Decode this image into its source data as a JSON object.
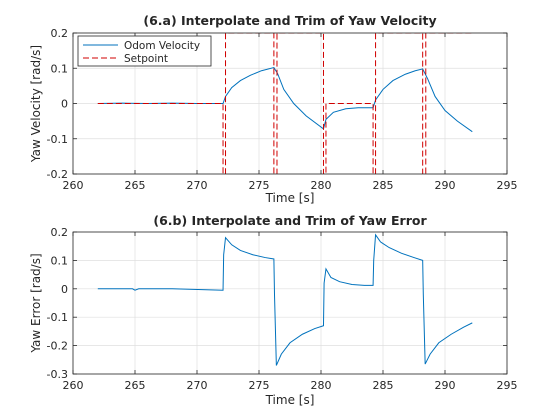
{
  "colors": {
    "odom": "#0072BD",
    "setpoint": "#D00000",
    "axis": "#262626",
    "grid": "#dfdfdf"
  },
  "chart_data": [
    {
      "type": "line",
      "title": "(6.a) Interpolate and Trim of Yaw Velocity",
      "xlabel": "Time [s]",
      "ylabel": "Yaw Velocity [rad/s]",
      "xlim": [
        260,
        295
      ],
      "ylim": [
        -0.2,
        0.2
      ],
      "xticks": [
        260,
        265,
        270,
        275,
        280,
        285,
        290,
        295
      ],
      "yticks": [
        -0.2,
        -0.1,
        0,
        0.1,
        0.2
      ],
      "xtick_labels": [
        "260",
        "265",
        "270",
        "275",
        "280",
        "285",
        "290",
        "295"
      ],
      "ytick_labels": [
        "-0.2",
        "-0.1",
        "0",
        "0.1",
        "0.2"
      ],
      "grid": true,
      "legend": {
        "placement": "top-left",
        "entries": [
          "Odom Velocity",
          "Setpoint"
        ]
      },
      "series": [
        {
          "name": "Odom Velocity",
          "style": "solid",
          "x": [
            262,
            264,
            266,
            268,
            270,
            272.1,
            272.3,
            272.8,
            273.5,
            274.3,
            275.2,
            276.2,
            276.5,
            277.0,
            277.8,
            278.8,
            280.2,
            280.4,
            281.0,
            282.0,
            283.0,
            284.2,
            284.4,
            285.0,
            285.8,
            286.8,
            287.6,
            288.2,
            288.6,
            289.2,
            290.0,
            291.0,
            292.2
          ],
          "y": [
            0,
            0.001,
            0,
            0.001,
            0,
            0,
            0.02,
            0.045,
            0.065,
            0.08,
            0.093,
            0.102,
            0.085,
            0.04,
            0.0,
            -0.035,
            -0.072,
            -0.045,
            -0.025,
            -0.015,
            -0.012,
            -0.012,
            0.01,
            0.04,
            0.065,
            0.083,
            0.093,
            0.098,
            0.07,
            0.02,
            -0.02,
            -0.05,
            -0.08
          ]
        },
        {
          "name": "Setpoint",
          "style": "dashed",
          "x": [
            262,
            272.1,
            272.1,
            272.3,
            272.3,
            276.2,
            276.2,
            276.45,
            276.45,
            280.2,
            280.2,
            280.4,
            280.4,
            284.2,
            284.2,
            284.4,
            284.4,
            288.2,
            288.2,
            288.45,
            288.45,
            292.2
          ],
          "y": [
            0,
            0,
            -0.2,
            -0.2,
            0.2,
            0.2,
            -0.2,
            -0.2,
            0.2,
            0.2,
            -0.2,
            -0.2,
            0,
            0,
            -0.2,
            -0.2,
            0.2,
            0.2,
            -0.2,
            -0.2,
            0.2,
            0.2
          ],
          "notes_visible": "setpoint segments between 272-276 and 284-288 continue above the axis limit"
        }
      ]
    },
    {
      "type": "line",
      "title": "(6.b) Interpolate and Trim of Yaw Error",
      "xlabel": "Time [s]",
      "ylabel": "Yaw Error [rad/s]",
      "xlim": [
        260,
        295
      ],
      "ylim": [
        -0.3,
        0.2
      ],
      "xticks": [
        260,
        265,
        270,
        275,
        280,
        285,
        290,
        295
      ],
      "yticks": [
        -0.3,
        -0.2,
        -0.1,
        0,
        0.1,
        0.2
      ],
      "xtick_labels": [
        "260",
        "265",
        "270",
        "275",
        "280",
        "285",
        "290",
        "295"
      ],
      "ytick_labels": [
        "-0.3",
        "-0.2",
        "-0.1",
        "0",
        "0.1",
        "0.2"
      ],
      "grid": true,
      "series": [
        {
          "name": "",
          "style": "solid",
          "x": [
            262,
            264.8,
            265.0,
            265.3,
            268,
            272.1,
            272.15,
            272.3,
            272.8,
            273.5,
            274.5,
            275.5,
            276.2,
            276.25,
            276.4,
            276.8,
            277.5,
            278.5,
            279.5,
            280.2,
            280.25,
            280.4,
            280.8,
            281.5,
            282.5,
            283.5,
            284.2,
            284.25,
            284.4,
            284.8,
            285.5,
            286.5,
            287.5,
            288.2,
            288.25,
            288.4,
            288.8,
            289.5,
            290.5,
            291.5,
            292.2
          ],
          "y": [
            0,
            0,
            -0.005,
            0,
            0,
            -0.005,
            0.12,
            0.18,
            0.155,
            0.135,
            0.12,
            0.11,
            0.105,
            -0.02,
            -0.27,
            -0.23,
            -0.19,
            -0.16,
            -0.14,
            -0.13,
            0.02,
            0.07,
            0.04,
            0.025,
            0.015,
            0.012,
            0.012,
            0.1,
            0.19,
            0.165,
            0.145,
            0.125,
            0.11,
            0.1,
            -0.02,
            -0.265,
            -0.23,
            -0.19,
            -0.16,
            -0.135,
            -0.12
          ]
        }
      ]
    }
  ]
}
